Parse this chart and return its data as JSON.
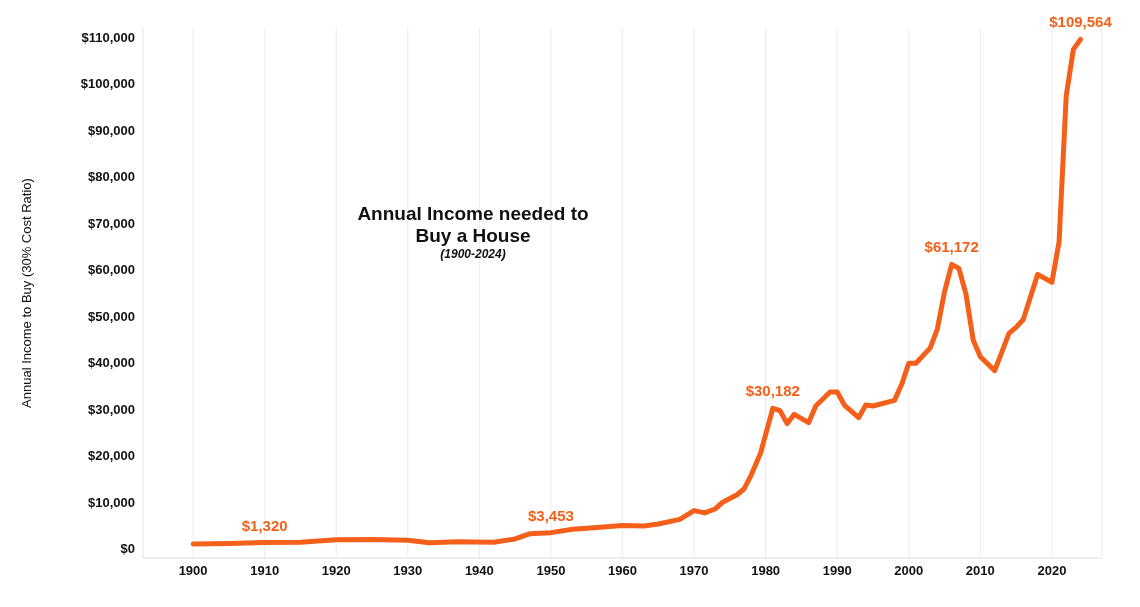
{
  "chart_data": {
    "type": "line",
    "title": "Annual Income needed to Buy a House",
    "subtitle": "(1900-2024)",
    "ylabel": "Annual Income to Buy (30% Cost Ratio)",
    "x": [
      1900,
      1905,
      1910,
      1915,
      1920,
      1925,
      1930,
      1933,
      1937,
      1942,
      1945,
      1947,
      1950,
      1953,
      1956,
      1960,
      1963,
      1965,
      1968,
      1970,
      1971.5,
      1973,
      1974,
      1976,
      1977,
      1978,
      1979.3,
      1981,
      1982,
      1983,
      1984,
      1986,
      1987,
      1989,
      1990,
      1991,
      1993,
      1994,
      1995,
      1998,
      1999,
      2000,
      2001,
      2003,
      2004,
      2005,
      2006,
      2007,
      2008,
      2009,
      2010,
      2012,
      2013,
      2014,
      2015,
      2016,
      2018,
      2020,
      2021,
      2022,
      2023,
      2024
    ],
    "series": [
      {
        "color": "#f4601a",
        "values": [
          1000,
          1100,
          1320,
          1400,
          1900,
          2000,
          1800,
          1300,
          1500,
          1400,
          2100,
          3200,
          3453,
          4200,
          4500,
          5000,
          4900,
          5300,
          6300,
          8200,
          7700,
          8600,
          10000,
          11600,
          12900,
          15900,
          20600,
          30182,
          29700,
          26900,
          28900,
          27100,
          30700,
          33700,
          33700,
          30900,
          28200,
          30900,
          30700,
          31900,
          35300,
          39900,
          39900,
          43200,
          47300,
          55300,
          61172,
          60300,
          54700,
          44900,
          41300,
          38300,
          42300,
          46300,
          47600,
          49300,
          59000,
          57300,
          66000,
          97400,
          107400,
          109564
        ],
        "value_labels": [
          null,
          null,
          "$1,320",
          null,
          null,
          null,
          null,
          null,
          null,
          null,
          null,
          null,
          "$3,453",
          null,
          null,
          null,
          null,
          null,
          null,
          null,
          null,
          null,
          null,
          null,
          null,
          null,
          null,
          "$30,182",
          null,
          null,
          null,
          null,
          null,
          null,
          null,
          null,
          null,
          null,
          null,
          null,
          null,
          null,
          null,
          null,
          null,
          null,
          "$61,172",
          null,
          null,
          null,
          null,
          null,
          null,
          null,
          null,
          null,
          null,
          null,
          null,
          null,
          null,
          "$109,564"
        ]
      }
    ],
    "xlim": [
      1893,
      2027
    ],
    "xticks": [
      1900,
      1910,
      1920,
      1930,
      1940,
      1950,
      1960,
      1970,
      1980,
      1990,
      2000,
      2010,
      2020
    ],
    "ylim": [
      -2000,
      112000
    ],
    "yticks": [
      {
        "value": 0,
        "label": "$0"
      },
      {
        "value": 10000,
        "label": "$10,000"
      },
      {
        "value": 20000,
        "label": "$20,000"
      },
      {
        "value": 30000,
        "label": "$30,000"
      },
      {
        "value": 40000,
        "label": "$40,000"
      },
      {
        "value": 50000,
        "label": "$50,000"
      },
      {
        "value": 60000,
        "label": "$60,000"
      },
      {
        "value": 70000,
        "label": "$70,000"
      },
      {
        "value": 80000,
        "label": "$80,000"
      },
      {
        "value": 90000,
        "label": "$90,000"
      },
      {
        "value": 100000,
        "label": "$100,000"
      },
      {
        "value": 110000,
        "label": "$110,000"
      }
    ],
    "grid": "x",
    "marker": "none",
    "line_style": "solid"
  }
}
